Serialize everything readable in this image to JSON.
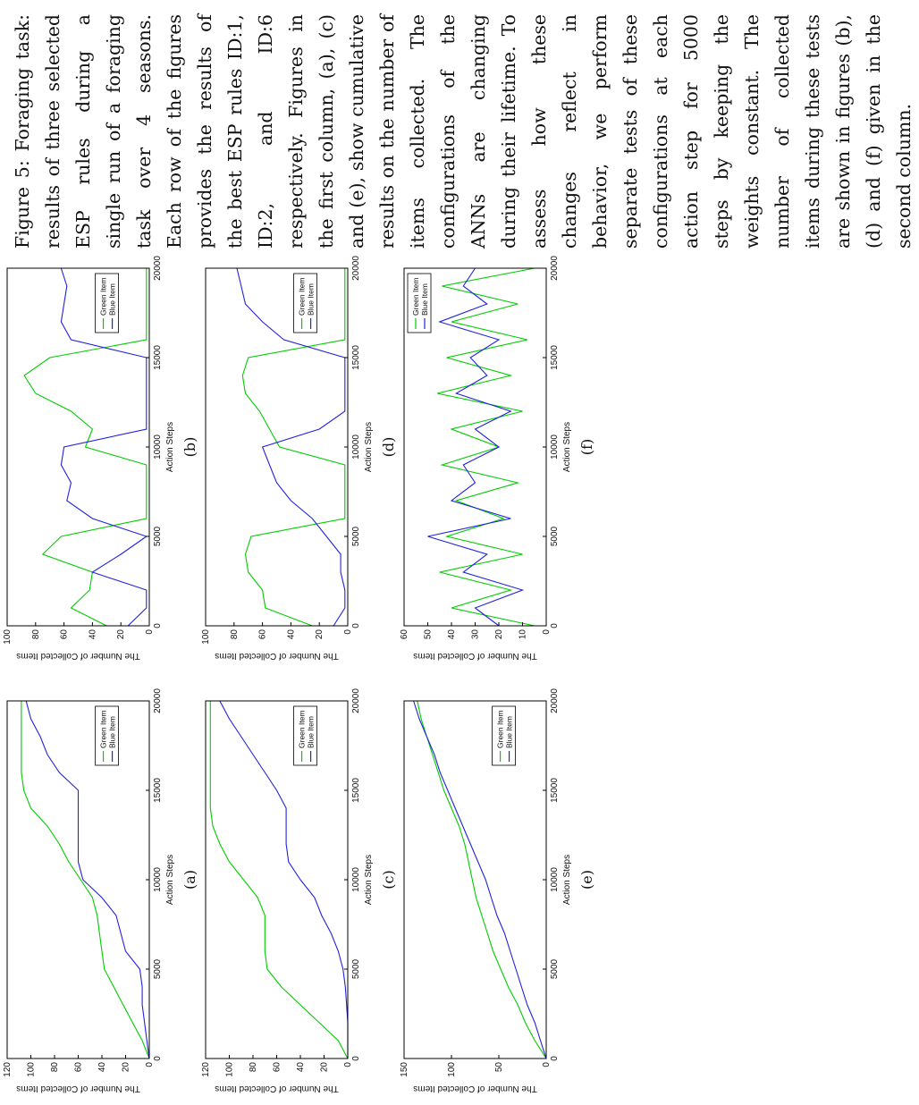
{
  "caption": {
    "text": "Figure 5: Foraging task: results of three selected ESP rules during a single run of a foraging task over 4 seasons. Each row of the figures provides the results of the best ESP rules ID:1, ID:2, and ID:6 respectively. Figures in the first column, (a), (c) and (e), show cumulative results on the number of items collected. The configurations of the ANNs are changing during their lifetime. To assess how these changes reflect in behavior, we perform separate tests of these configurations at each action step for 5000 steps by keeping the weights constant. The number of collected items during these tests are shown in figures (b), (d) and (f) given in the second column."
  },
  "chart_data": [
    {
      "type": "line",
      "panel": "a",
      "sublabel": "(a)",
      "xlabel": "Action Steps",
      "ylabel": "The Number of Collected Items",
      "xlim": [
        0,
        20000
      ],
      "ylim": [
        0,
        120
      ],
      "xticks": [
        "0",
        "5000",
        "10000",
        "15000",
        "20000"
      ],
      "yticks": [
        "0",
        "20",
        "40",
        "60",
        "80",
        "100",
        "120"
      ],
      "legend": "right",
      "series": [
        {
          "name": "Green Item",
          "color": "#00cc00",
          "x": [
            0,
            1000,
            2000,
            3000,
            4000,
            5000,
            6000,
            7000,
            8000,
            9000,
            10000,
            11000,
            12000,
            13000,
            14000,
            15000,
            16000,
            17000,
            18000,
            19000,
            20000
          ],
          "y": [
            0,
            6,
            14,
            22,
            30,
            38,
            40,
            42,
            44,
            48,
            58,
            68,
            76,
            86,
            100,
            106,
            108,
            108,
            108,
            108,
            108
          ]
        },
        {
          "name": "Blue Item",
          "color": "#2222dd",
          "x": [
            0,
            1000,
            2000,
            3000,
            4000,
            5000,
            6000,
            7000,
            8000,
            9000,
            10000,
            11000,
            12000,
            13000,
            14000,
            15000,
            16000,
            17000,
            18000,
            19000,
            20000
          ],
          "y": [
            0,
            2,
            4,
            6,
            6,
            8,
            20,
            24,
            28,
            40,
            56,
            60,
            60,
            60,
            60,
            60,
            76,
            86,
            92,
            100,
            104
          ]
        }
      ]
    },
    {
      "type": "line",
      "panel": "b",
      "sublabel": "(b)",
      "xlabel": "Action Steps",
      "ylabel": "The Number of Collected Items",
      "xlim": [
        0,
        20000
      ],
      "ylim": [
        0,
        100
      ],
      "xticks": [
        "0",
        "5000",
        "10000",
        "15000",
        "20000"
      ],
      "yticks": [
        "0",
        "20",
        "40",
        "60",
        "80",
        "100"
      ],
      "legend": "right",
      "series": [
        {
          "name": "Green Item",
          "color": "#00cc00",
          "x": [
            0,
            1000,
            2000,
            3000,
            4000,
            5000,
            6000,
            7000,
            8000,
            9000,
            10000,
            11000,
            12000,
            13000,
            14000,
            15000,
            16000,
            17000,
            18000,
            19000,
            20000
          ],
          "y": [
            30,
            55,
            42,
            40,
            75,
            62,
            2,
            2,
            2,
            2,
            45,
            40,
            55,
            80,
            88,
            70,
            2,
            2,
            2,
            2,
            2
          ]
        },
        {
          "name": "Blue Item",
          "color": "#2222dd",
          "x": [
            0,
            1000,
            2000,
            3000,
            4000,
            5000,
            6000,
            7000,
            8000,
            9000,
            10000,
            11000,
            12000,
            13000,
            14000,
            15000,
            16000,
            17000,
            18000,
            19000,
            20000
          ],
          "y": [
            15,
            2,
            2,
            40,
            20,
            2,
            40,
            58,
            55,
            62,
            60,
            2,
            2,
            2,
            2,
            2,
            55,
            62,
            60,
            58,
            62
          ]
        }
      ]
    },
    {
      "type": "line",
      "panel": "c",
      "sublabel": "(c)",
      "xlabel": "Action Steps",
      "ylabel": "The Number of Collected Items",
      "xlim": [
        0,
        20000
      ],
      "ylim": [
        0,
        120
      ],
      "xticks": [
        "0",
        "5000",
        "10000",
        "15000",
        "20000"
      ],
      "yticks": [
        "0",
        "20",
        "40",
        "60",
        "80",
        "100",
        "120"
      ],
      "legend": "right",
      "series": [
        {
          "name": "Green Item",
          "color": "#00cc00",
          "x": [
            0,
            1000,
            2000,
            3000,
            4000,
            5000,
            6000,
            7000,
            8000,
            9000,
            10000,
            11000,
            12000,
            13000,
            14000,
            15000,
            16000,
            17000,
            18000,
            19000,
            20000
          ],
          "y": [
            0,
            8,
            24,
            40,
            56,
            68,
            70,
            70,
            70,
            76,
            88,
            100,
            108,
            114,
            116,
            116,
            116,
            116,
            116,
            116,
            116
          ]
        },
        {
          "name": "Blue Item",
          "color": "#2222dd",
          "x": [
            0,
            1000,
            2000,
            3000,
            4000,
            5000,
            6000,
            7000,
            8000,
            9000,
            10000,
            11000,
            12000,
            13000,
            14000,
            15000,
            16000,
            17000,
            18000,
            19000,
            20000
          ],
          "y": [
            0,
            0,
            0,
            1,
            2,
            4,
            8,
            14,
            22,
            28,
            40,
            50,
            52,
            52,
            52,
            60,
            70,
            80,
            90,
            100,
            108
          ]
        }
      ]
    },
    {
      "type": "line",
      "panel": "d",
      "sublabel": "(d)",
      "xlabel": "Action Steps",
      "ylabel": "The Number of Collected Items",
      "xlim": [
        0,
        20000
      ],
      "ylim": [
        0,
        100
      ],
      "xticks": [
        "0",
        "5000",
        "10000",
        "15000",
        "20000"
      ],
      "yticks": [
        "0",
        "20",
        "40",
        "60",
        "80",
        "100"
      ],
      "legend": "right",
      "series": [
        {
          "name": "Green Item",
          "color": "#00cc00",
          "x": [
            0,
            1000,
            2000,
            3000,
            4000,
            5000,
            6000,
            7000,
            8000,
            9000,
            10000,
            11000,
            12000,
            13000,
            14000,
            15000,
            16000,
            17000,
            18000,
            19000,
            20000
          ],
          "y": [
            25,
            58,
            60,
            70,
            72,
            68,
            2,
            2,
            2,
            2,
            48,
            55,
            62,
            72,
            74,
            70,
            2,
            2,
            2,
            2,
            2
          ]
        },
        {
          "name": "Blue Item",
          "color": "#2222dd",
          "x": [
            0,
            1000,
            2000,
            3000,
            4000,
            5000,
            6000,
            7000,
            8000,
            9000,
            10000,
            11000,
            12000,
            13000,
            14000,
            15000,
            16000,
            17000,
            18000,
            19000,
            20000
          ],
          "y": [
            10,
            2,
            2,
            5,
            5,
            15,
            25,
            40,
            50,
            55,
            60,
            20,
            2,
            2,
            2,
            2,
            45,
            60,
            72,
            75,
            78
          ]
        }
      ]
    },
    {
      "type": "line",
      "panel": "e",
      "sublabel": "(e)",
      "xlabel": "Action Steps",
      "ylabel": "The Number of Collected Items",
      "xlim": [
        0,
        20000
      ],
      "ylim": [
        0,
        150
      ],
      "xticks": [
        "0",
        "5000",
        "10000",
        "15000",
        "20000"
      ],
      "yticks": [
        "0",
        "50",
        "100",
        "150"
      ],
      "legend": "right",
      "series": [
        {
          "name": "Green Item",
          "color": "#00cc00",
          "x": [
            0,
            1000,
            2000,
            3000,
            4000,
            5000,
            6000,
            7000,
            8000,
            9000,
            10000,
            11000,
            12000,
            13000,
            14000,
            15000,
            16000,
            17000,
            18000,
            19000,
            20000
          ],
          "y": [
            0,
            12,
            22,
            30,
            40,
            48,
            56,
            62,
            68,
            74,
            78,
            82,
            86,
            92,
            100,
            108,
            114,
            120,
            126,
            132,
            136
          ]
        },
        {
          "name": "Blue Item",
          "color": "#2222dd",
          "x": [
            0,
            1000,
            2000,
            3000,
            4000,
            5000,
            6000,
            7000,
            8000,
            9000,
            10000,
            11000,
            12000,
            13000,
            14000,
            15000,
            16000,
            17000,
            18000,
            19000,
            20000
          ],
          "y": [
            0,
            6,
            12,
            20,
            26,
            32,
            38,
            44,
            52,
            58,
            64,
            72,
            80,
            88,
            96,
            104,
            112,
            118,
            126,
            134,
            140
          ]
        }
      ]
    },
    {
      "type": "line",
      "panel": "f",
      "sublabel": "(f)",
      "xlabel": "Action Steps",
      "ylabel": "The Number of Collected Items",
      "xlim": [
        0,
        20000
      ],
      "ylim": [
        0,
        60
      ],
      "xticks": [
        "0",
        "5000",
        "10000",
        "15000",
        "20000"
      ],
      "yticks": [
        "0",
        "10",
        "20",
        "30",
        "40",
        "50",
        "60"
      ],
      "legend": "top-right",
      "series": [
        {
          "name": "Green Item",
          "color": "#00cc00",
          "x": [
            0,
            1000,
            2000,
            3000,
            4000,
            5000,
            6000,
            7000,
            8000,
            9000,
            10000,
            11000,
            12000,
            13000,
            14000,
            15000,
            16000,
            17000,
            18000,
            19000,
            20000
          ],
          "y": [
            5,
            40,
            15,
            45,
            10,
            42,
            18,
            38,
            12,
            44,
            20,
            40,
            10,
            46,
            15,
            42,
            8,
            40,
            12,
            44,
            5
          ]
        },
        {
          "name": "Blue Item",
          "color": "#2222dd",
          "x": [
            0,
            1000,
            2000,
            3000,
            4000,
            5000,
            6000,
            7000,
            8000,
            9000,
            10000,
            11000,
            12000,
            13000,
            14000,
            15000,
            16000,
            17000,
            18000,
            19000,
            20000
          ],
          "y": [
            20,
            30,
            10,
            35,
            25,
            50,
            15,
            40,
            30,
            35,
            20,
            30,
            15,
            38,
            25,
            32,
            20,
            45,
            25,
            35,
            30
          ]
        }
      ]
    }
  ]
}
